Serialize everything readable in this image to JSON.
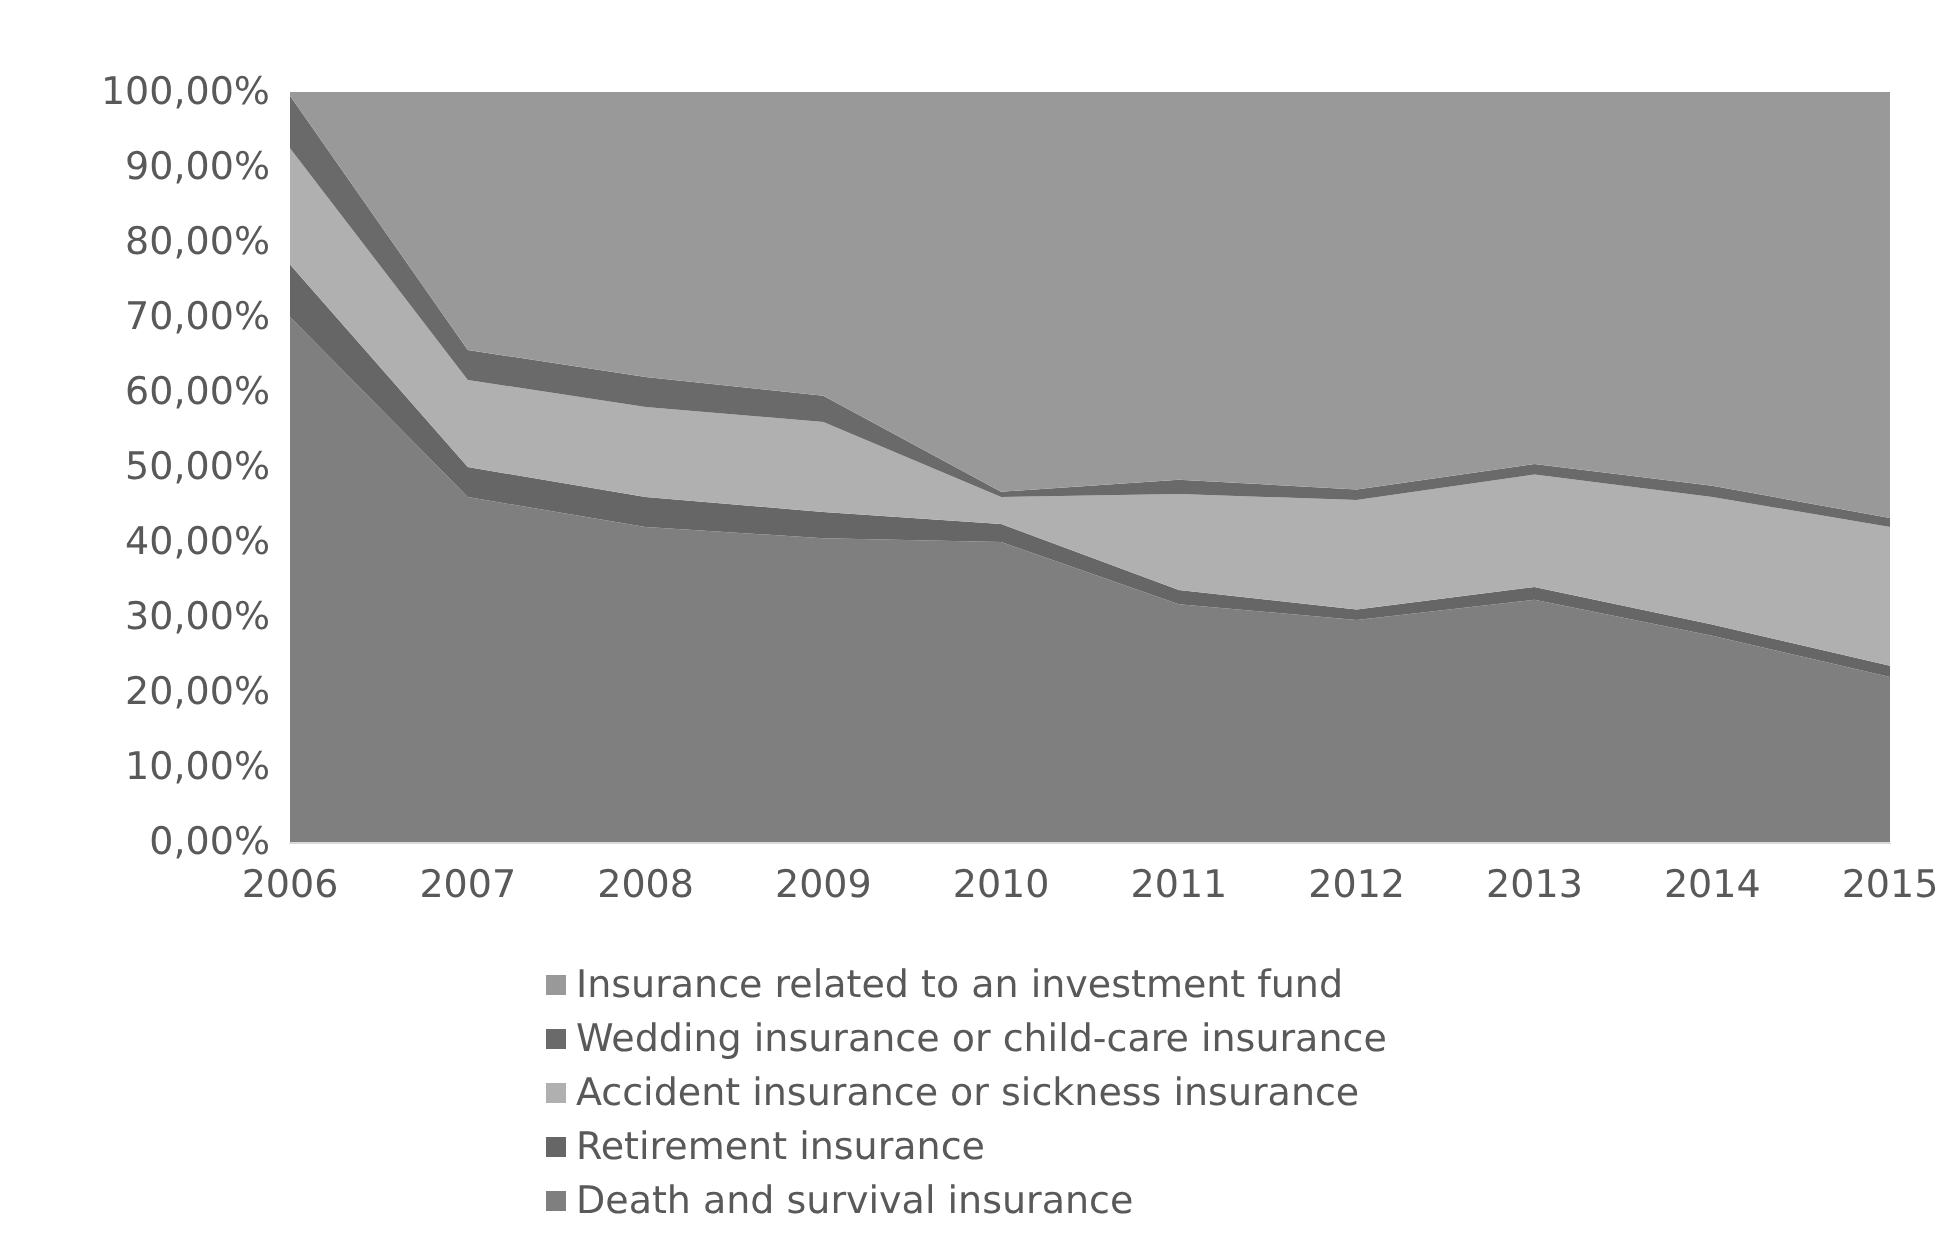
{
  "chart_data": {
    "type": "area",
    "stacked": true,
    "categories": [
      "2006",
      "2007",
      "2008",
      "2009",
      "2010",
      "2011",
      "2012",
      "2013",
      "2014",
      "2015"
    ],
    "series": [
      {
        "name": "Death and survival insurance",
        "color": "#7f7f7f",
        "values": [
          70,
          46,
          42,
          40.5,
          40,
          31.7,
          29.6,
          32.3,
          27.5,
          22
        ]
      },
      {
        "name": "Retirement insurance",
        "color": "#666666",
        "values": [
          7,
          4,
          4,
          3.5,
          2.4,
          1.9,
          1.4,
          1.7,
          1.5,
          1.5
        ]
      },
      {
        "name": "Accident insurance or sickness insurance",
        "color": "#b0b0b0",
        "values": [
          15.5,
          11.6,
          12,
          12,
          3.6,
          12.8,
          14.6,
          15,
          17,
          18.5
        ]
      },
      {
        "name": "Wedding insurance or child-care insurance",
        "color": "#6a6a6a",
        "values": [
          7,
          4,
          4,
          3.5,
          0.7,
          1.9,
          1.4,
          1.4,
          1.5,
          1.2
        ]
      },
      {
        "name": "Insurance related to an investment fund",
        "color": "#999999",
        "values": [
          0.5,
          34.4,
          38,
          40.5,
          53.3,
          51.7,
          53,
          49.6,
          52.5,
          56.8
        ]
      }
    ],
    "ylim": [
      0,
      100
    ],
    "yticks": [
      {
        "value": 0,
        "label": "0,00%"
      },
      {
        "value": 10,
        "label": "10,00%"
      },
      {
        "value": 20,
        "label": "20,00%"
      },
      {
        "value": 30,
        "label": "30,00%"
      },
      {
        "value": 40,
        "label": "40,00%"
      },
      {
        "value": 50,
        "label": "50,00%"
      },
      {
        "value": 60,
        "label": "60,00%"
      },
      {
        "value": 70,
        "label": "70,00%"
      },
      {
        "value": 80,
        "label": "80,00%"
      },
      {
        "value": 90,
        "label": "90,00%"
      },
      {
        "value": 100,
        "label": "100,00%"
      }
    ],
    "grid": false,
    "legend": "bottom",
    "marker": "none"
  }
}
